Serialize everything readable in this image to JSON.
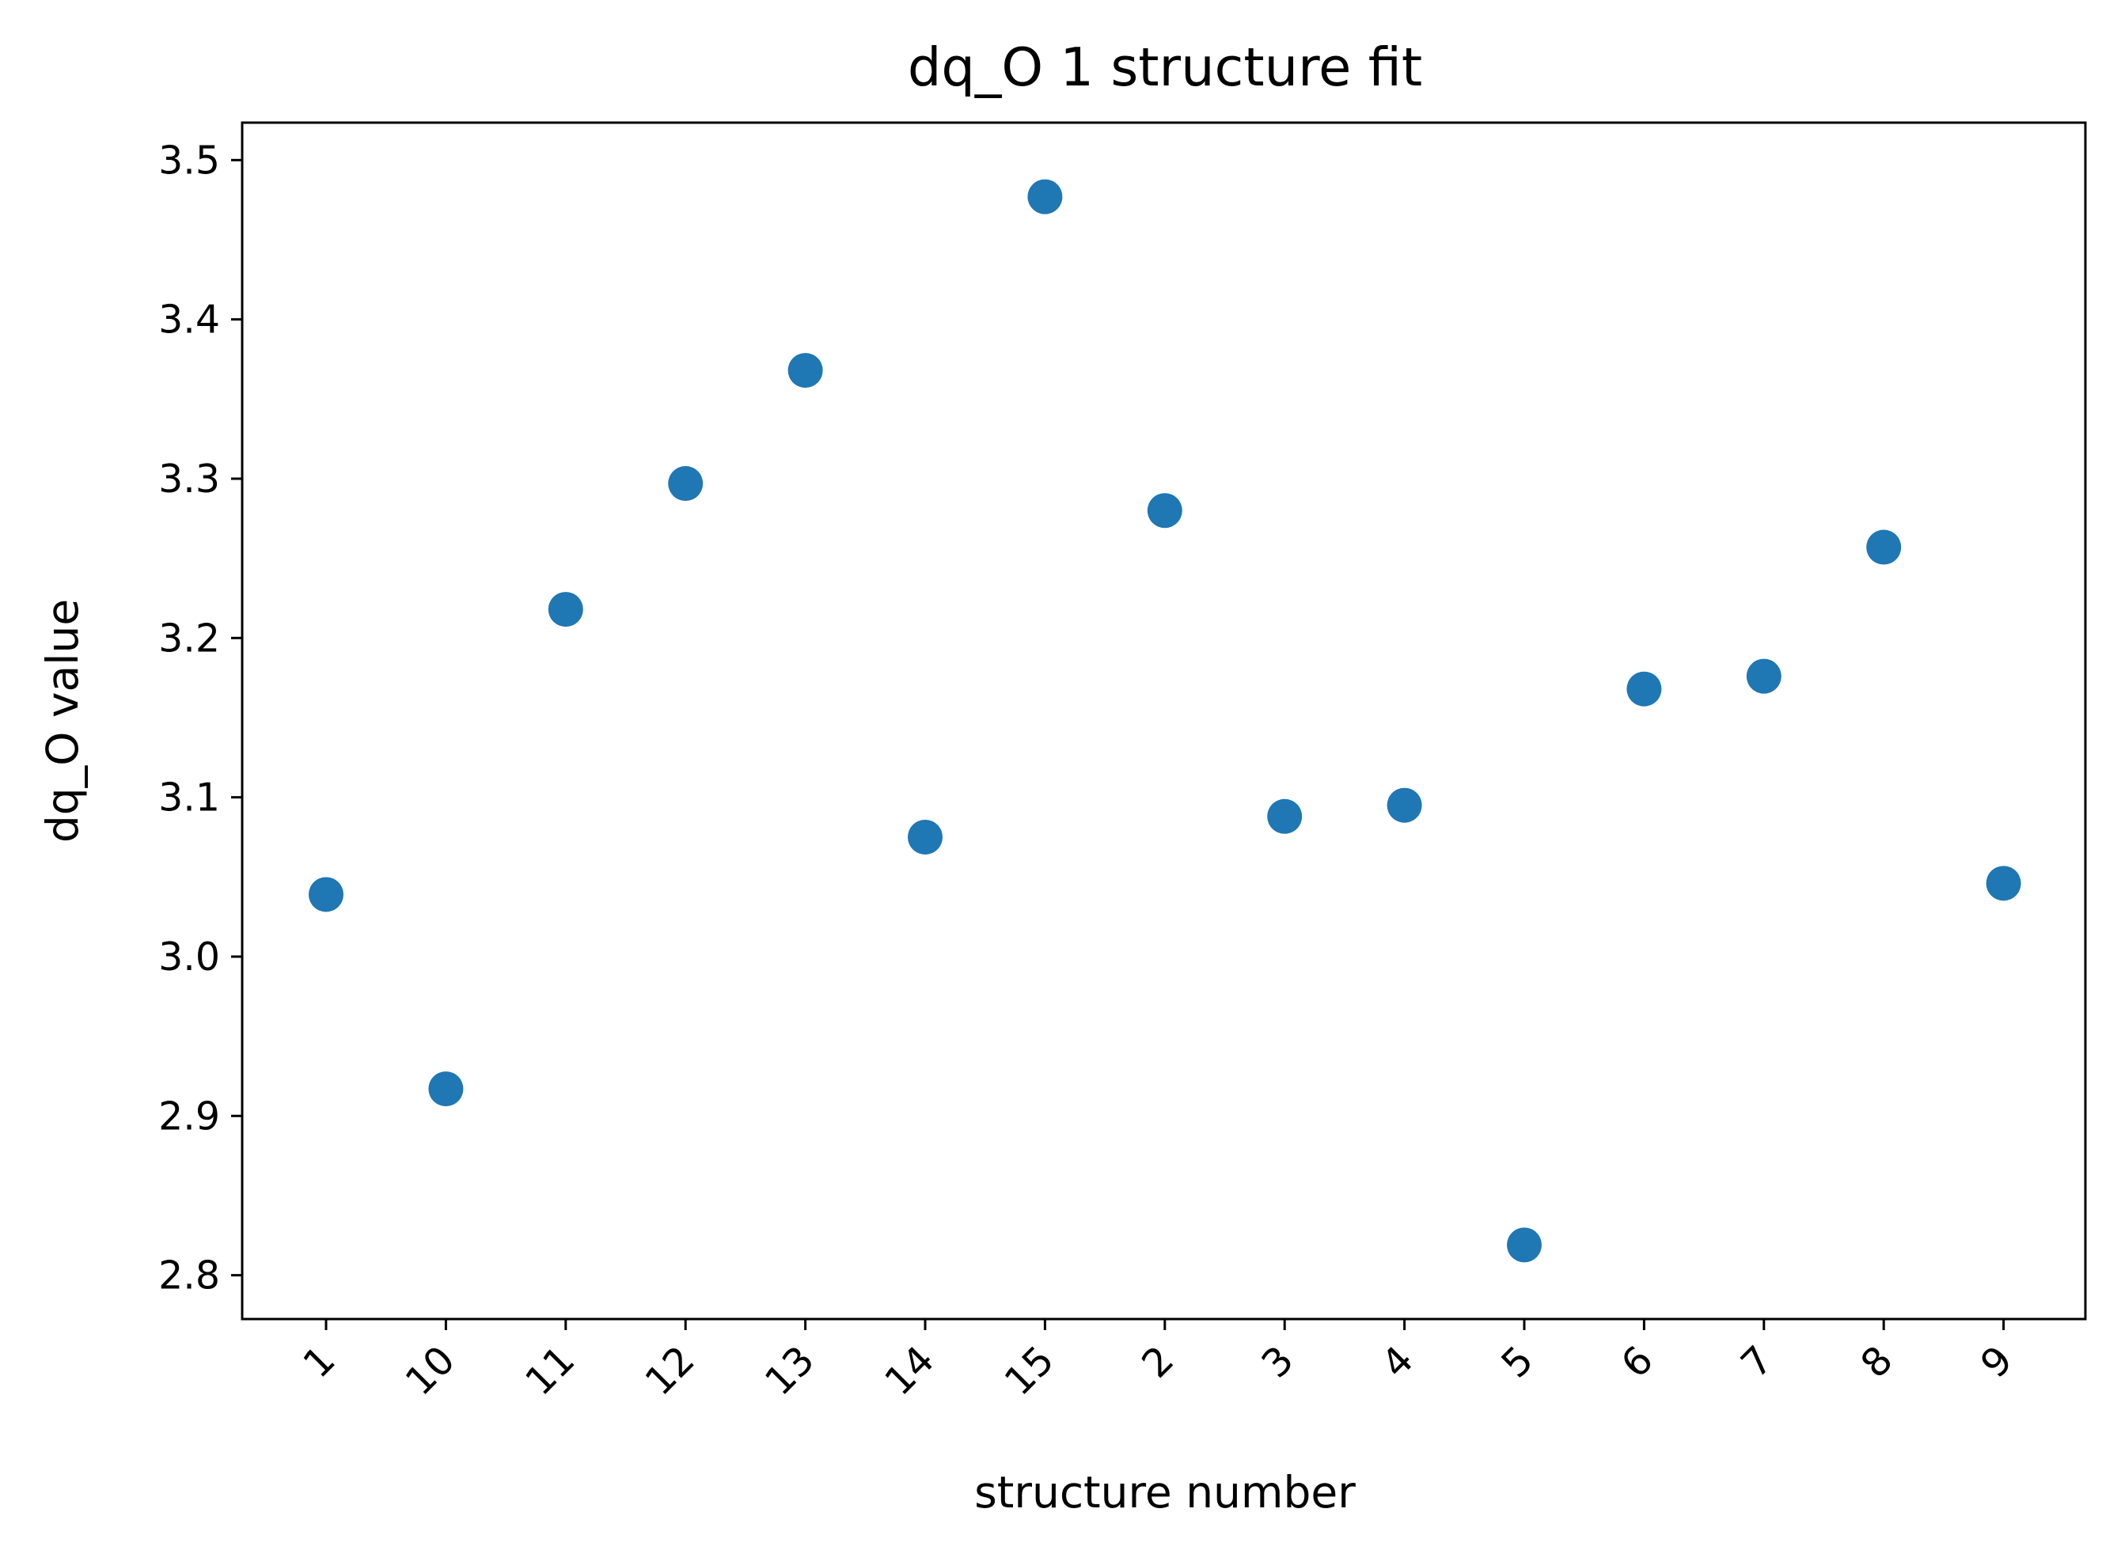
{
  "chart_data": {
    "type": "scatter",
    "title": "dq_O 1 structure fit",
    "xlabel": "structure number",
    "ylabel": "dq_O value",
    "categories": [
      "1",
      "10",
      "11",
      "12",
      "13",
      "14",
      "15",
      "2",
      "3",
      "4",
      "5",
      "6",
      "7",
      "8",
      "9"
    ],
    "values": [
      3.039,
      2.917,
      3.218,
      3.297,
      3.368,
      3.075,
      3.477,
      3.28,
      3.088,
      3.095,
      2.819,
      3.168,
      3.176,
      3.257,
      3.046
    ],
    "yticks": [
      "2.8",
      "2.9",
      "3.0",
      "3.1",
      "3.2",
      "3.3",
      "3.4",
      "3.5"
    ],
    "ylim": [
      2.7725,
      3.5235
    ],
    "xtick_rotation": 45,
    "grid": false,
    "legend": "none",
    "marker_color": "#1f77b4"
  }
}
